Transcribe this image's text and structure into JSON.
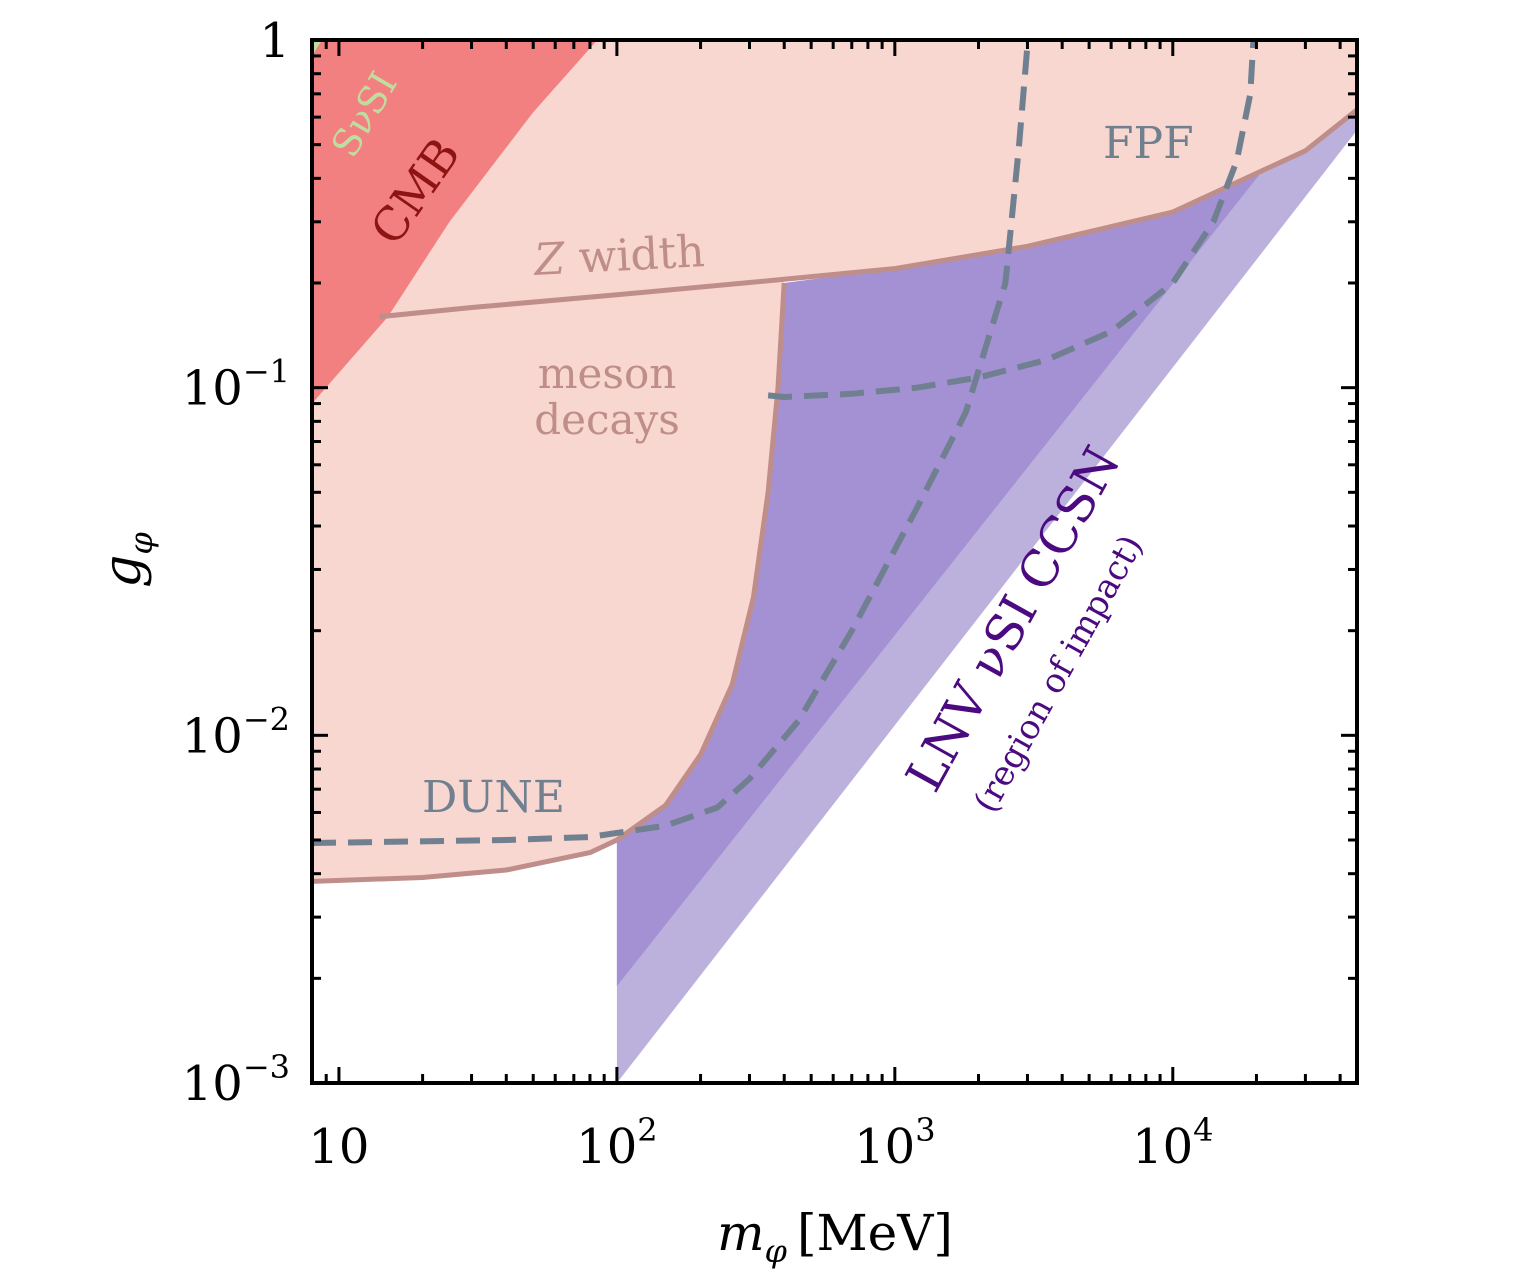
{
  "chart_data": {
    "type": "area",
    "x_scale": "log",
    "y_scale": "log",
    "xlim": [
      8,
      46000
    ],
    "ylim": [
      0.001,
      1
    ],
    "xlabel_main": "m",
    "xlabel_sub": "φ",
    "xlabel_unit": "[MeV]",
    "ylabel_main": "g",
    "ylabel_sub": "φ",
    "x_ticks": [
      {
        "value": 10,
        "base": "10",
        "exp": ""
      },
      {
        "value": 100,
        "base": "10",
        "exp": "2"
      },
      {
        "value": 1000,
        "base": "10",
        "exp": "3"
      },
      {
        "value": 10000,
        "base": "10",
        "exp": "4"
      }
    ],
    "y_ticks": [
      {
        "value": 0.001,
        "base": "10",
        "exp": "−3"
      },
      {
        "value": 0.01,
        "base": "10",
        "exp": "−2"
      },
      {
        "value": 0.1,
        "base": "10",
        "exp": "−1"
      },
      {
        "value": 1,
        "base": "1",
        "exp": ""
      }
    ],
    "regions": [
      {
        "label": "Z width",
        "color": "#f7d7cf",
        "boundary_color": "#bf8e8a",
        "boundary": [
          [
            14,
            0.16
          ],
          [
            30,
            0.17
          ],
          [
            100,
            0.185
          ],
          [
            400,
            0.205
          ],
          [
            1000,
            0.22
          ],
          [
            3000,
            0.255
          ],
          [
            10000,
            0.32
          ],
          [
            30000,
            0.48
          ],
          [
            46000,
            0.63
          ]
        ]
      },
      {
        "label": "meson decays",
        "color": "#f7d7cf",
        "boundary_color": "#bf8e8a",
        "boundary": [
          [
            8,
            0.0038
          ],
          [
            20,
            0.0039
          ],
          [
            40,
            0.0041
          ],
          [
            80,
            0.0046
          ],
          [
            100,
            0.005
          ],
          [
            150,
            0.0063
          ],
          [
            200,
            0.0088
          ],
          [
            260,
            0.014
          ],
          [
            310,
            0.025
          ],
          [
            350,
            0.05
          ],
          [
            380,
            0.1
          ],
          [
            400,
            0.2
          ]
        ]
      },
      {
        "label": "CMB",
        "color": "#f28080",
        "text_color": "#8e1414",
        "boundary": [
          [
            8,
            0.09
          ],
          [
            15,
            0.16
          ],
          [
            25,
            0.3
          ],
          [
            50,
            0.62
          ],
          [
            85,
            1.0
          ]
        ]
      },
      {
        "label": "SνSI",
        "color": "#bedd9e",
        "text_color": "#bedd9e",
        "boundary": [
          [
            8,
            0.9
          ],
          [
            8.7,
            1.0
          ]
        ]
      },
      {
        "label": "LNV νSI CCSN",
        "sublabel": "(region of impact)",
        "color_dark": "#a391d3",
        "color_light": "#bcb1dd",
        "text_color": "#4b0a80",
        "lower_edge": [
          [
            100,
            0.001
          ],
          [
            46000,
            0.55
          ]
        ],
        "dark_lower_edge": [
          [
            100,
            0.0019
          ],
          [
            21000,
            0.42
          ]
        ]
      }
    ],
    "sensitivity_curves": [
      {
        "label": "DUNE",
        "color": "#708090",
        "style": "dashed",
        "points": [
          [
            8,
            0.0049
          ],
          [
            40,
            0.005
          ],
          [
            80,
            0.0051
          ],
          [
            150,
            0.0055
          ],
          [
            230,
            0.0062
          ],
          [
            300,
            0.0075
          ],
          [
            450,
            0.011
          ],
          [
            700,
            0.02
          ],
          [
            1200,
            0.045
          ],
          [
            1800,
            0.085
          ],
          [
            2500,
            0.2
          ],
          [
            2800,
            0.5
          ],
          [
            3000,
            0.97
          ]
        ]
      },
      {
        "label": "FPF",
        "color": "#708090",
        "style": "dashed",
        "points": [
          [
            350,
            0.095
          ],
          [
            400,
            0.094
          ],
          [
            700,
            0.096
          ],
          [
            1200,
            0.1
          ],
          [
            2000,
            0.107
          ],
          [
            3500,
            0.12
          ],
          [
            6000,
            0.145
          ],
          [
            10000,
            0.2
          ],
          [
            14000,
            0.3
          ],
          [
            17000,
            0.45
          ],
          [
            19000,
            0.7
          ],
          [
            19500,
            1.0
          ]
        ]
      }
    ]
  }
}
